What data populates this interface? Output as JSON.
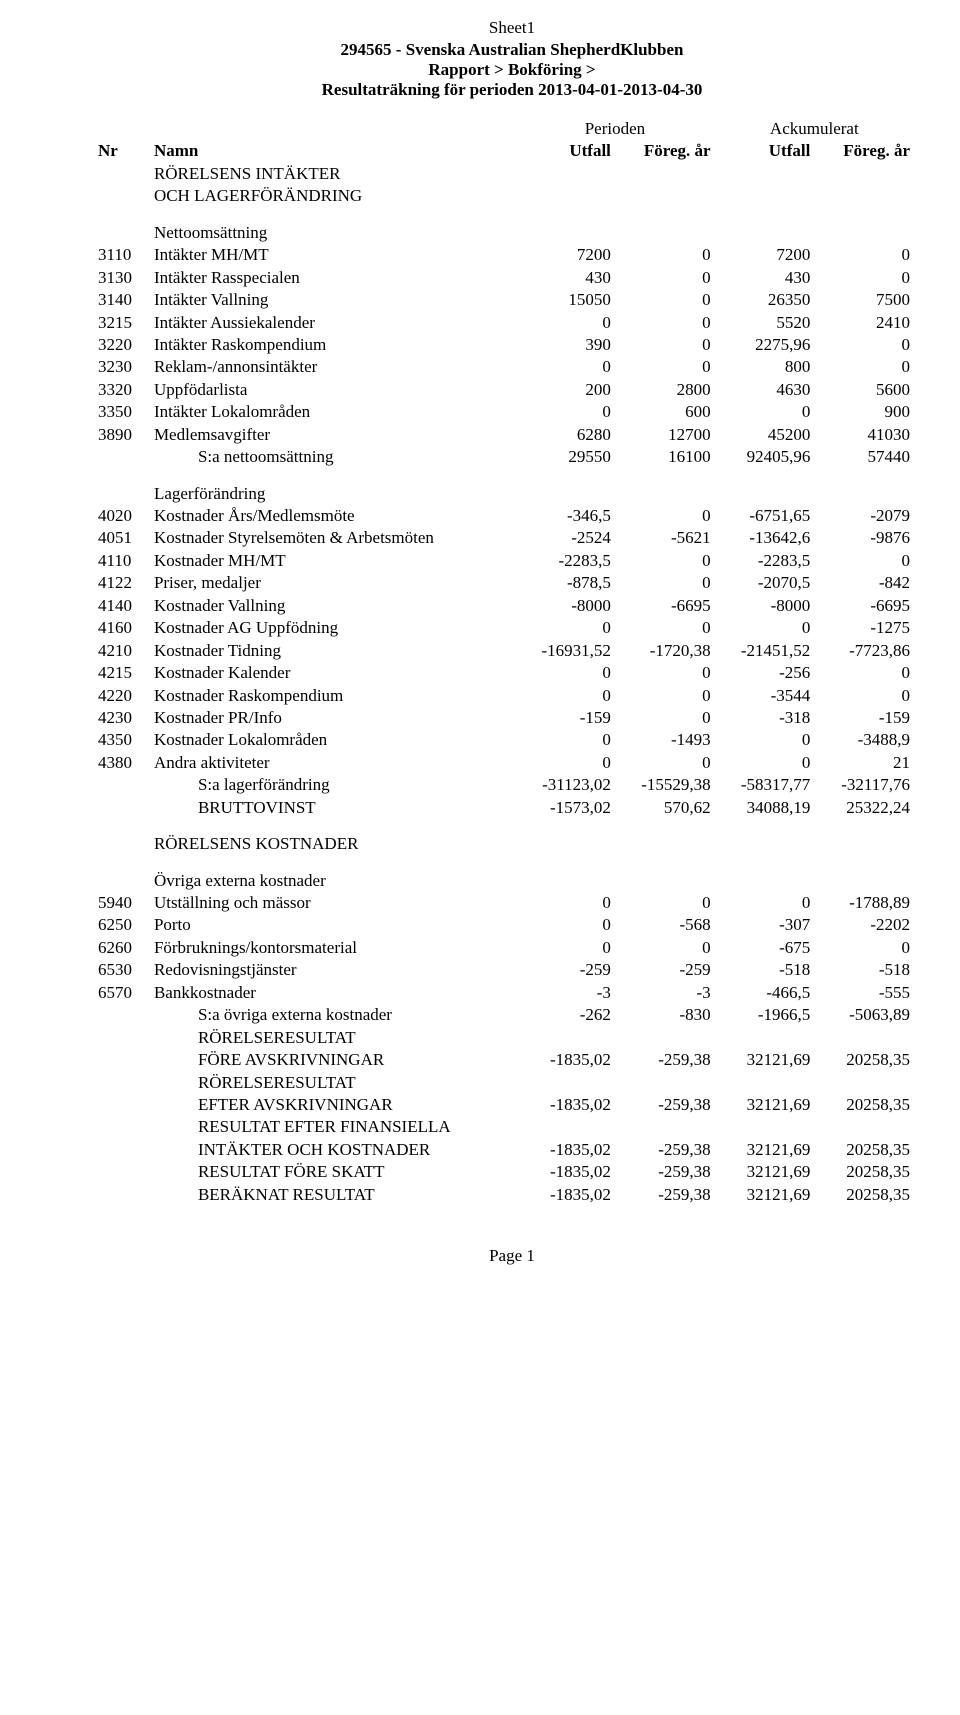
{
  "sheet_label": "Sheet1",
  "header": {
    "org": "294565 - Svenska Australian ShepherdKlubben",
    "breadcrumb": "Rapport > Bokföring >",
    "title": "Resultaträkning för perioden 2013-04-01-2013-04-30"
  },
  "col_headers": {
    "period": "Perioden",
    "ack": "Ackumulerat",
    "nr": "Nr",
    "namn": "Namn",
    "utfall": "Utfall",
    "foreg": "Föreg. år"
  },
  "labels": {
    "rorelsens_intakter": "RÖRELSENS INTÄKTER",
    "och_lagerforandring": "OCH LAGERFÖRÄNDRING",
    "nettoomsattning": "Nettoomsättning",
    "sa_nettoomsattning": "S:a nettoomsättning",
    "lagerforandring": "Lagerförändring",
    "sa_lagerforandring": "S:a lagerförändring",
    "bruttovinst": "BRUTTOVINST",
    "rorelsens_kostnader": "RÖRELSENS KOSTNADER",
    "ovriga_externa": "Övriga externa kostnader",
    "sa_ovriga": "S:a övriga externa kostnader",
    "rorelseresultat": "RÖRELSERESULTAT",
    "fore_avskrivningar": "FÖRE AVSKRIVNINGAR",
    "efter_avskrivningar": "EFTER AVSKRIVNINGAR",
    "resultat_efter_finansiella": "RESULTAT EFTER FINANSIELLA",
    "intakter_och_kostnader": "INTÄKTER OCH KOSTNADER",
    "resultat_fore_skatt": "RESULTAT FÖRE SKATT",
    "beraknat_resultat": "BERÄKNAT RESULTAT"
  },
  "netto_rows": [
    {
      "nr": "3110",
      "name": "Intäkter MH/MT",
      "v": [
        "7200",
        "0",
        "7200",
        "0"
      ]
    },
    {
      "nr": "3130",
      "name": "Intäkter Rasspecialen",
      "v": [
        "430",
        "0",
        "430",
        "0"
      ]
    },
    {
      "nr": "3140",
      "name": "Intäkter Vallning",
      "v": [
        "15050",
        "0",
        "26350",
        "7500"
      ]
    },
    {
      "nr": "3215",
      "name": "Intäkter Aussiekalender",
      "v": [
        "0",
        "0",
        "5520",
        "2410"
      ]
    },
    {
      "nr": "3220",
      "name": "Intäkter Raskompendium",
      "v": [
        "390",
        "0",
        "2275,96",
        "0"
      ]
    },
    {
      "nr": "3230",
      "name": "Reklam-/annonsintäkter",
      "v": [
        "0",
        "0",
        "800",
        "0"
      ]
    },
    {
      "nr": "3320",
      "name": "Uppfödarlista",
      "v": [
        "200",
        "2800",
        "4630",
        "5600"
      ]
    },
    {
      "nr": "3350",
      "name": "Intäkter Lokalområden",
      "v": [
        "0",
        "600",
        "0",
        "900"
      ]
    },
    {
      "nr": "3890",
      "name": "Medlemsavgifter",
      "v": [
        "6280",
        "12700",
        "45200",
        "41030"
      ]
    }
  ],
  "netto_sum": [
    "29550",
    "16100",
    "92405,96",
    "57440"
  ],
  "lager_rows": [
    {
      "nr": "4020",
      "name": "Kostnader Års/Medlemsmöte",
      "v": [
        "-346,5",
        "0",
        "-6751,65",
        "-2079"
      ]
    },
    {
      "nr": "4051",
      "name": "Kostnader Styrelsemöten & Arbetsmöten",
      "v": [
        "-2524",
        "-5621",
        "-13642,6",
        "-9876"
      ]
    },
    {
      "nr": "4110",
      "name": "Kostnader MH/MT",
      "v": [
        "-2283,5",
        "0",
        "-2283,5",
        "0"
      ]
    },
    {
      "nr": "4122",
      "name": "Priser, medaljer",
      "v": [
        "-878,5",
        "0",
        "-2070,5",
        "-842"
      ]
    },
    {
      "nr": "4140",
      "name": "Kostnader Vallning",
      "v": [
        "-8000",
        "-6695",
        "-8000",
        "-6695"
      ]
    },
    {
      "nr": "4160",
      "name": "Kostnader AG Uppfödning",
      "v": [
        "0",
        "0",
        "0",
        "-1275"
      ]
    },
    {
      "nr": "4210",
      "name": "Kostnader Tidning",
      "v": [
        "-16931,52",
        "-1720,38",
        "-21451,52",
        "-7723,86"
      ]
    },
    {
      "nr": "4215",
      "name": "Kostnader Kalender",
      "v": [
        "0",
        "0",
        "-256",
        "0"
      ]
    },
    {
      "nr": "4220",
      "name": "Kostnader Raskompendium",
      "v": [
        "0",
        "0",
        "-3544",
        "0"
      ]
    },
    {
      "nr": "4230",
      "name": "Kostnader PR/Info",
      "v": [
        "-159",
        "0",
        "-318",
        "-159"
      ]
    },
    {
      "nr": "4350",
      "name": "Kostnader Lokalområden",
      "v": [
        "0",
        "-1493",
        "0",
        "-3488,9"
      ]
    },
    {
      "nr": "4380",
      "name": "Andra aktiviteter",
      "v": [
        "0",
        "0",
        "0",
        "21"
      ]
    }
  ],
  "lager_sum": [
    "-31123,02",
    "-15529,38",
    "-58317,77",
    "-32117,76"
  ],
  "bruttovinst": [
    "-1573,02",
    "570,62",
    "34088,19",
    "25322,24"
  ],
  "ovriga_rows": [
    {
      "nr": "5940",
      "name": "Utställning och mässor",
      "v": [
        "0",
        "0",
        "0",
        "-1788,89"
      ]
    },
    {
      "nr": "6250",
      "name": "Porto",
      "v": [
        "0",
        "-568",
        "-307",
        "-2202"
      ]
    },
    {
      "nr": "6260",
      "name": "Förbruknings/kontorsmaterial",
      "v": [
        "0",
        "0",
        "-675",
        "0"
      ]
    },
    {
      "nr": "6530",
      "name": "Redovisningstjänster",
      "v": [
        "-259",
        "-259",
        "-518",
        "-518"
      ]
    },
    {
      "nr": "6570",
      "name": "Bankkostnader",
      "v": [
        "-3",
        "-3",
        "-466,5",
        "-555"
      ]
    }
  ],
  "ovriga_sum": [
    "-262",
    "-830",
    "-1966,5",
    "-5063,89"
  ],
  "result_rows": {
    "fore": [
      "-1835,02",
      "-259,38",
      "32121,69",
      "20258,35"
    ],
    "efter": [
      "-1835,02",
      "-259,38",
      "32121,69",
      "20258,35"
    ],
    "finans": [
      "-1835,02",
      "-259,38",
      "32121,69",
      "20258,35"
    ],
    "skatt": [
      "-1835,02",
      "-259,38",
      "32121,69",
      "20258,35"
    ],
    "beraknat": [
      "-1835,02",
      "-259,38",
      "32121,69",
      "20258,35"
    ]
  },
  "footer": "Page 1"
}
